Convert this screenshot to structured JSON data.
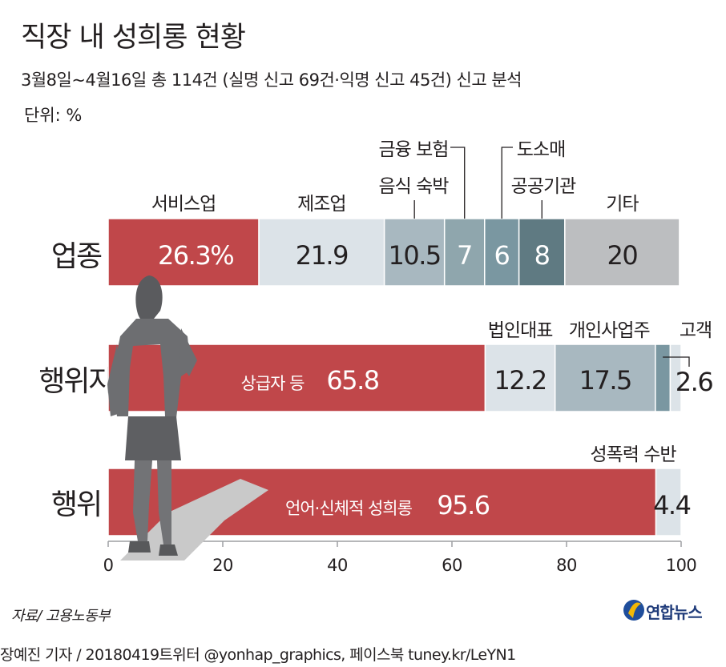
{
  "header": {
    "title": "직장 내 성희롱 현황",
    "subtitle": "3월8일~4월16일 총 114건 (실명 신고 69건·익명 신고 45건) 신고 분석",
    "unit": "단위: %"
  },
  "footer": {
    "source": "자료/ 고용노동부",
    "credit": "장예진 기자 / 20180419트위터 @yonhap_graphics, 페이스북 tuney.kr/LeYN1",
    "logo": "연합뉴스"
  },
  "colors": {
    "red": "#c0474a",
    "light": "#dce3e8",
    "blue_gray": "#a8b8c0",
    "teal1": "#8fa6ad",
    "teal2": "#7a97a1",
    "teal3": "#5f7a82",
    "gray": "#bcbec0",
    "axis": "#9d9fa2",
    "silhouette": "#6d6e71"
  },
  "chart_data": {
    "type": "bar",
    "orientation": "horizontal",
    "stacked": true,
    "xlim": [
      0,
      100
    ],
    "xticks": [
      "0",
      "20",
      "40",
      "60",
      "80",
      "100"
    ],
    "tick_values": [
      0,
      20,
      40,
      60,
      80,
      100
    ],
    "rows": [
      {
        "label": "업종",
        "segments": [
          {
            "name": "서비스업",
            "value": 26.3,
            "label": "26.3%",
            "color": "#c0474a"
          },
          {
            "name": "제조업",
            "value": 21.9,
            "label": "21.9",
            "color": "#dce3e8"
          },
          {
            "name": "음식 숙박",
            "value": 10.5,
            "label": "10.5",
            "color": "#a8b8c0"
          },
          {
            "name": "금융 보험",
            "value": 7,
            "label": "7",
            "color": "#8fa6ad"
          },
          {
            "name": "도소매",
            "value": 6,
            "label": "6",
            "color": "#7a97a1"
          },
          {
            "name": "공공기관",
            "value": 8,
            "label": "8",
            "color": "#5f7a82"
          },
          {
            "name": "기타",
            "value": 20,
            "label": "20",
            "color": "#bcbec0"
          }
        ]
      },
      {
        "label": "행위자",
        "segments": [
          {
            "name": "상급자 등",
            "value": 65.8,
            "label": "65.8",
            "color": "#c0474a"
          },
          {
            "name": "법인대표",
            "value": 12.2,
            "label": "12.2",
            "color": "#dce3e8"
          },
          {
            "name": "개인사업주",
            "value": 17.5,
            "label": "17.5",
            "color": "#a8b8c0"
          },
          {
            "name": "고객",
            "value": 2.6,
            "label": "2.6",
            "color": "#7a97a1"
          },
          {
            "name": "",
            "value": 1.9,
            "label": "",
            "color": "#dce3e8"
          }
        ]
      },
      {
        "label": "행위",
        "segments": [
          {
            "name": "언어·신체적 성희롱",
            "value": 95.6,
            "label": "95.6",
            "color": "#c0474a"
          },
          {
            "name": "성폭력 수반",
            "value": 4.4,
            "label": "4.4",
            "color": "#dce3e8"
          }
        ]
      }
    ]
  }
}
